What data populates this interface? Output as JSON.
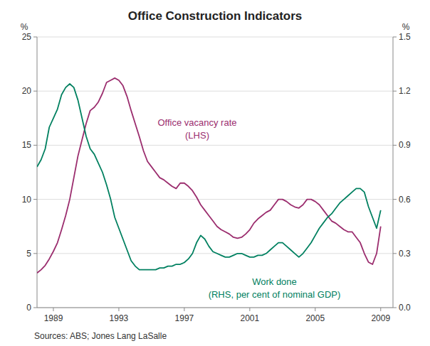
{
  "chart_data": {
    "type": "line",
    "title": "Office Construction Indicators",
    "ylabel": "%",
    "y2label": "%",
    "source": "Sources: ABS; Jones Lang LaSalle",
    "x": [
      1988.0,
      1988.25,
      1988.5,
      1988.75,
      1989.0,
      1989.25,
      1989.5,
      1989.75,
      1990.0,
      1990.25,
      1990.5,
      1990.75,
      1991.0,
      1991.25,
      1991.5,
      1991.75,
      1992.0,
      1992.25,
      1992.5,
      1992.75,
      1993.0,
      1993.25,
      1993.5,
      1993.75,
      1994.0,
      1994.25,
      1994.5,
      1994.75,
      1995.0,
      1995.25,
      1995.5,
      1995.75,
      1996.0,
      1996.25,
      1996.5,
      1996.75,
      1997.0,
      1997.25,
      1997.5,
      1997.75,
      1998.0,
      1998.25,
      1998.5,
      1998.75,
      1999.0,
      1999.25,
      1999.5,
      1999.75,
      2000.0,
      2000.25,
      2000.5,
      2000.75,
      2001.0,
      2001.25,
      2001.5,
      2001.75,
      2002.0,
      2002.25,
      2002.5,
      2002.75,
      2003.0,
      2003.25,
      2003.5,
      2003.75,
      2004.0,
      2004.25,
      2004.5,
      2004.75,
      2005.0,
      2005.25,
      2005.5,
      2005.75,
      2006.0,
      2006.25,
      2006.5,
      2006.75,
      2007.0,
      2007.25,
      2007.5,
      2007.75,
      2008.0,
      2008.25,
      2008.5,
      2008.75,
      2009.0
    ],
    "series": [
      {
        "color": "#9B2D6E",
        "values": [
          3.2,
          3.5,
          3.9,
          4.5,
          5.2,
          6.0,
          7.2,
          8.5,
          10.0,
          12.0,
          14.0,
          15.5,
          17.0,
          18.2,
          18.5,
          19.0,
          19.8,
          20.8,
          21.0,
          21.2,
          21.0,
          20.5,
          19.5,
          18.2,
          17.0,
          15.8,
          14.5,
          13.5,
          13.0,
          12.5,
          12.0,
          11.8,
          11.5,
          11.2,
          11.0,
          11.5,
          11.5,
          11.2,
          10.8,
          10.2,
          9.5,
          9.0,
          8.5,
          8.0,
          7.5,
          7.2,
          7.0,
          6.8,
          6.5,
          6.4,
          6.5,
          6.8,
          7.2,
          7.8,
          8.2,
          8.5,
          8.8,
          9.0,
          9.5,
          10.0,
          10.0,
          9.8,
          9.5,
          9.3,
          9.2,
          9.5,
          10.0,
          10.0,
          9.8,
          9.5,
          9.0,
          8.5,
          8.0,
          7.8,
          7.5,
          7.2,
          7.0,
          7.0,
          6.5,
          6.0,
          5.0,
          4.2,
          4.0,
          5.0,
          7.5
        ]
      },
      {
        "color": "#008060",
        "axis": "y2",
        "values": [
          0.78,
          0.82,
          0.88,
          1.0,
          1.05,
          1.1,
          1.18,
          1.22,
          1.24,
          1.22,
          1.15,
          1.05,
          0.95,
          0.88,
          0.85,
          0.8,
          0.75,
          0.68,
          0.6,
          0.5,
          0.44,
          0.38,
          0.32,
          0.26,
          0.23,
          0.21,
          0.21,
          0.21,
          0.21,
          0.21,
          0.22,
          0.22,
          0.23,
          0.23,
          0.24,
          0.24,
          0.25,
          0.27,
          0.3,
          0.36,
          0.4,
          0.38,
          0.34,
          0.31,
          0.3,
          0.29,
          0.28,
          0.28,
          0.29,
          0.3,
          0.3,
          0.29,
          0.28,
          0.28,
          0.29,
          0.29,
          0.3,
          0.32,
          0.34,
          0.36,
          0.36,
          0.34,
          0.32,
          0.3,
          0.28,
          0.3,
          0.33,
          0.36,
          0.4,
          0.44,
          0.47,
          0.5,
          0.52,
          0.55,
          0.58,
          0.6,
          0.62,
          0.64,
          0.66,
          0.66,
          0.64,
          0.56,
          0.5,
          0.44,
          0.54
        ]
      }
    ],
    "annotations": [
      {
        "lines": [
          "Office vacancy rate",
          "(LHS)"
        ],
        "color": "#9B2D6E"
      },
      {
        "lines": [
          "Work done",
          "(RHS, per cent of nominal GDP)"
        ],
        "color": "#008060"
      }
    ],
    "xlim": [
      1988.0,
      2009.75
    ],
    "xticks": [
      1989,
      1993,
      1997,
      2001,
      2005,
      2009
    ],
    "ylim": [
      0,
      25
    ],
    "yticks": [
      0,
      5,
      10,
      15,
      20,
      25
    ],
    "y2lim": [
      0.0,
      1.5
    ],
    "y2ticks": [
      {
        "value": 0.0,
        "label": "0.0"
      },
      0.3,
      0.6,
      0.9,
      1.2,
      1.5
    ],
    "grid": true
  }
}
